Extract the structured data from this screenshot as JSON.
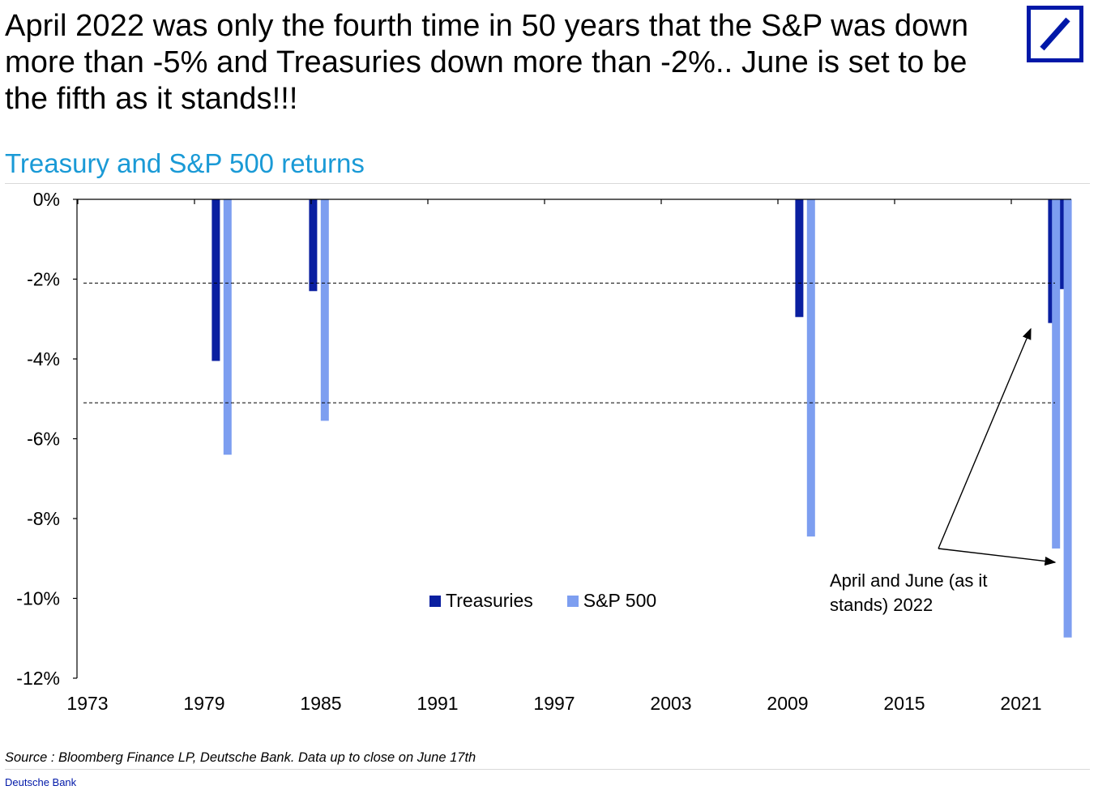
{
  "headline": "April 2022 was only the fourth time in 50 years that the S&P was down more than -5% and Treasuries down more than -2%.. June is set to be the fifth as it stands!!!",
  "logo_name": "Deutsche Bank logo",
  "colors": {
    "treasuries": "#0a1fa0",
    "sp500": "#7d9ef0",
    "subtitle": "#1a9ad6",
    "logo": "#0018a8"
  },
  "chart_data": {
    "type": "bar",
    "title": "Treasury and S&P 500 returns",
    "xlabel": "",
    "ylabel": "",
    "xlim": [
      1973,
      2023.6
    ],
    "ylim": [
      -12,
      0
    ],
    "x_ticks": [
      1973,
      1979,
      1985,
      1991,
      1997,
      2003,
      2009,
      2015,
      2021
    ],
    "y_ticks": [
      0,
      -2,
      -4,
      -6,
      -8,
      -10,
      -12
    ],
    "y_tick_labels": [
      "0%",
      "-2%",
      "-4%",
      "-6%",
      "-8%",
      "-10%",
      "-12%"
    ],
    "reference_lines": [
      -2.1,
      -5.1
    ],
    "series": [
      {
        "name": "Treasuries",
        "points": [
          {
            "x": 1979.6,
            "value": -4.05
          },
          {
            "x": 1984.6,
            "value": -2.3
          },
          {
            "x": 2009.6,
            "value": -2.95
          },
          {
            "x": 2022.6,
            "value": -3.1
          },
          {
            "x": 2023.2,
            "value": -2.25
          }
        ]
      },
      {
        "name": "S&P 500",
        "points": [
          {
            "x": 1980.2,
            "value": -6.4
          },
          {
            "x": 1985.2,
            "value": -5.55
          },
          {
            "x": 2010.2,
            "value": -8.45
          },
          {
            "x": 2022.8,
            "value": -8.75
          },
          {
            "x": 2023.4,
            "value": -10.98
          }
        ]
      }
    ],
    "legend": [
      "Treasuries",
      "S&P 500"
    ],
    "legend_position": "bottom-center",
    "annotation": "April and June (as it stands) 2022"
  },
  "source": "Source : Bloomberg Finance LP, Deutsche Bank. Data up to close on June 17th",
  "footer": "Deutsche Bank"
}
